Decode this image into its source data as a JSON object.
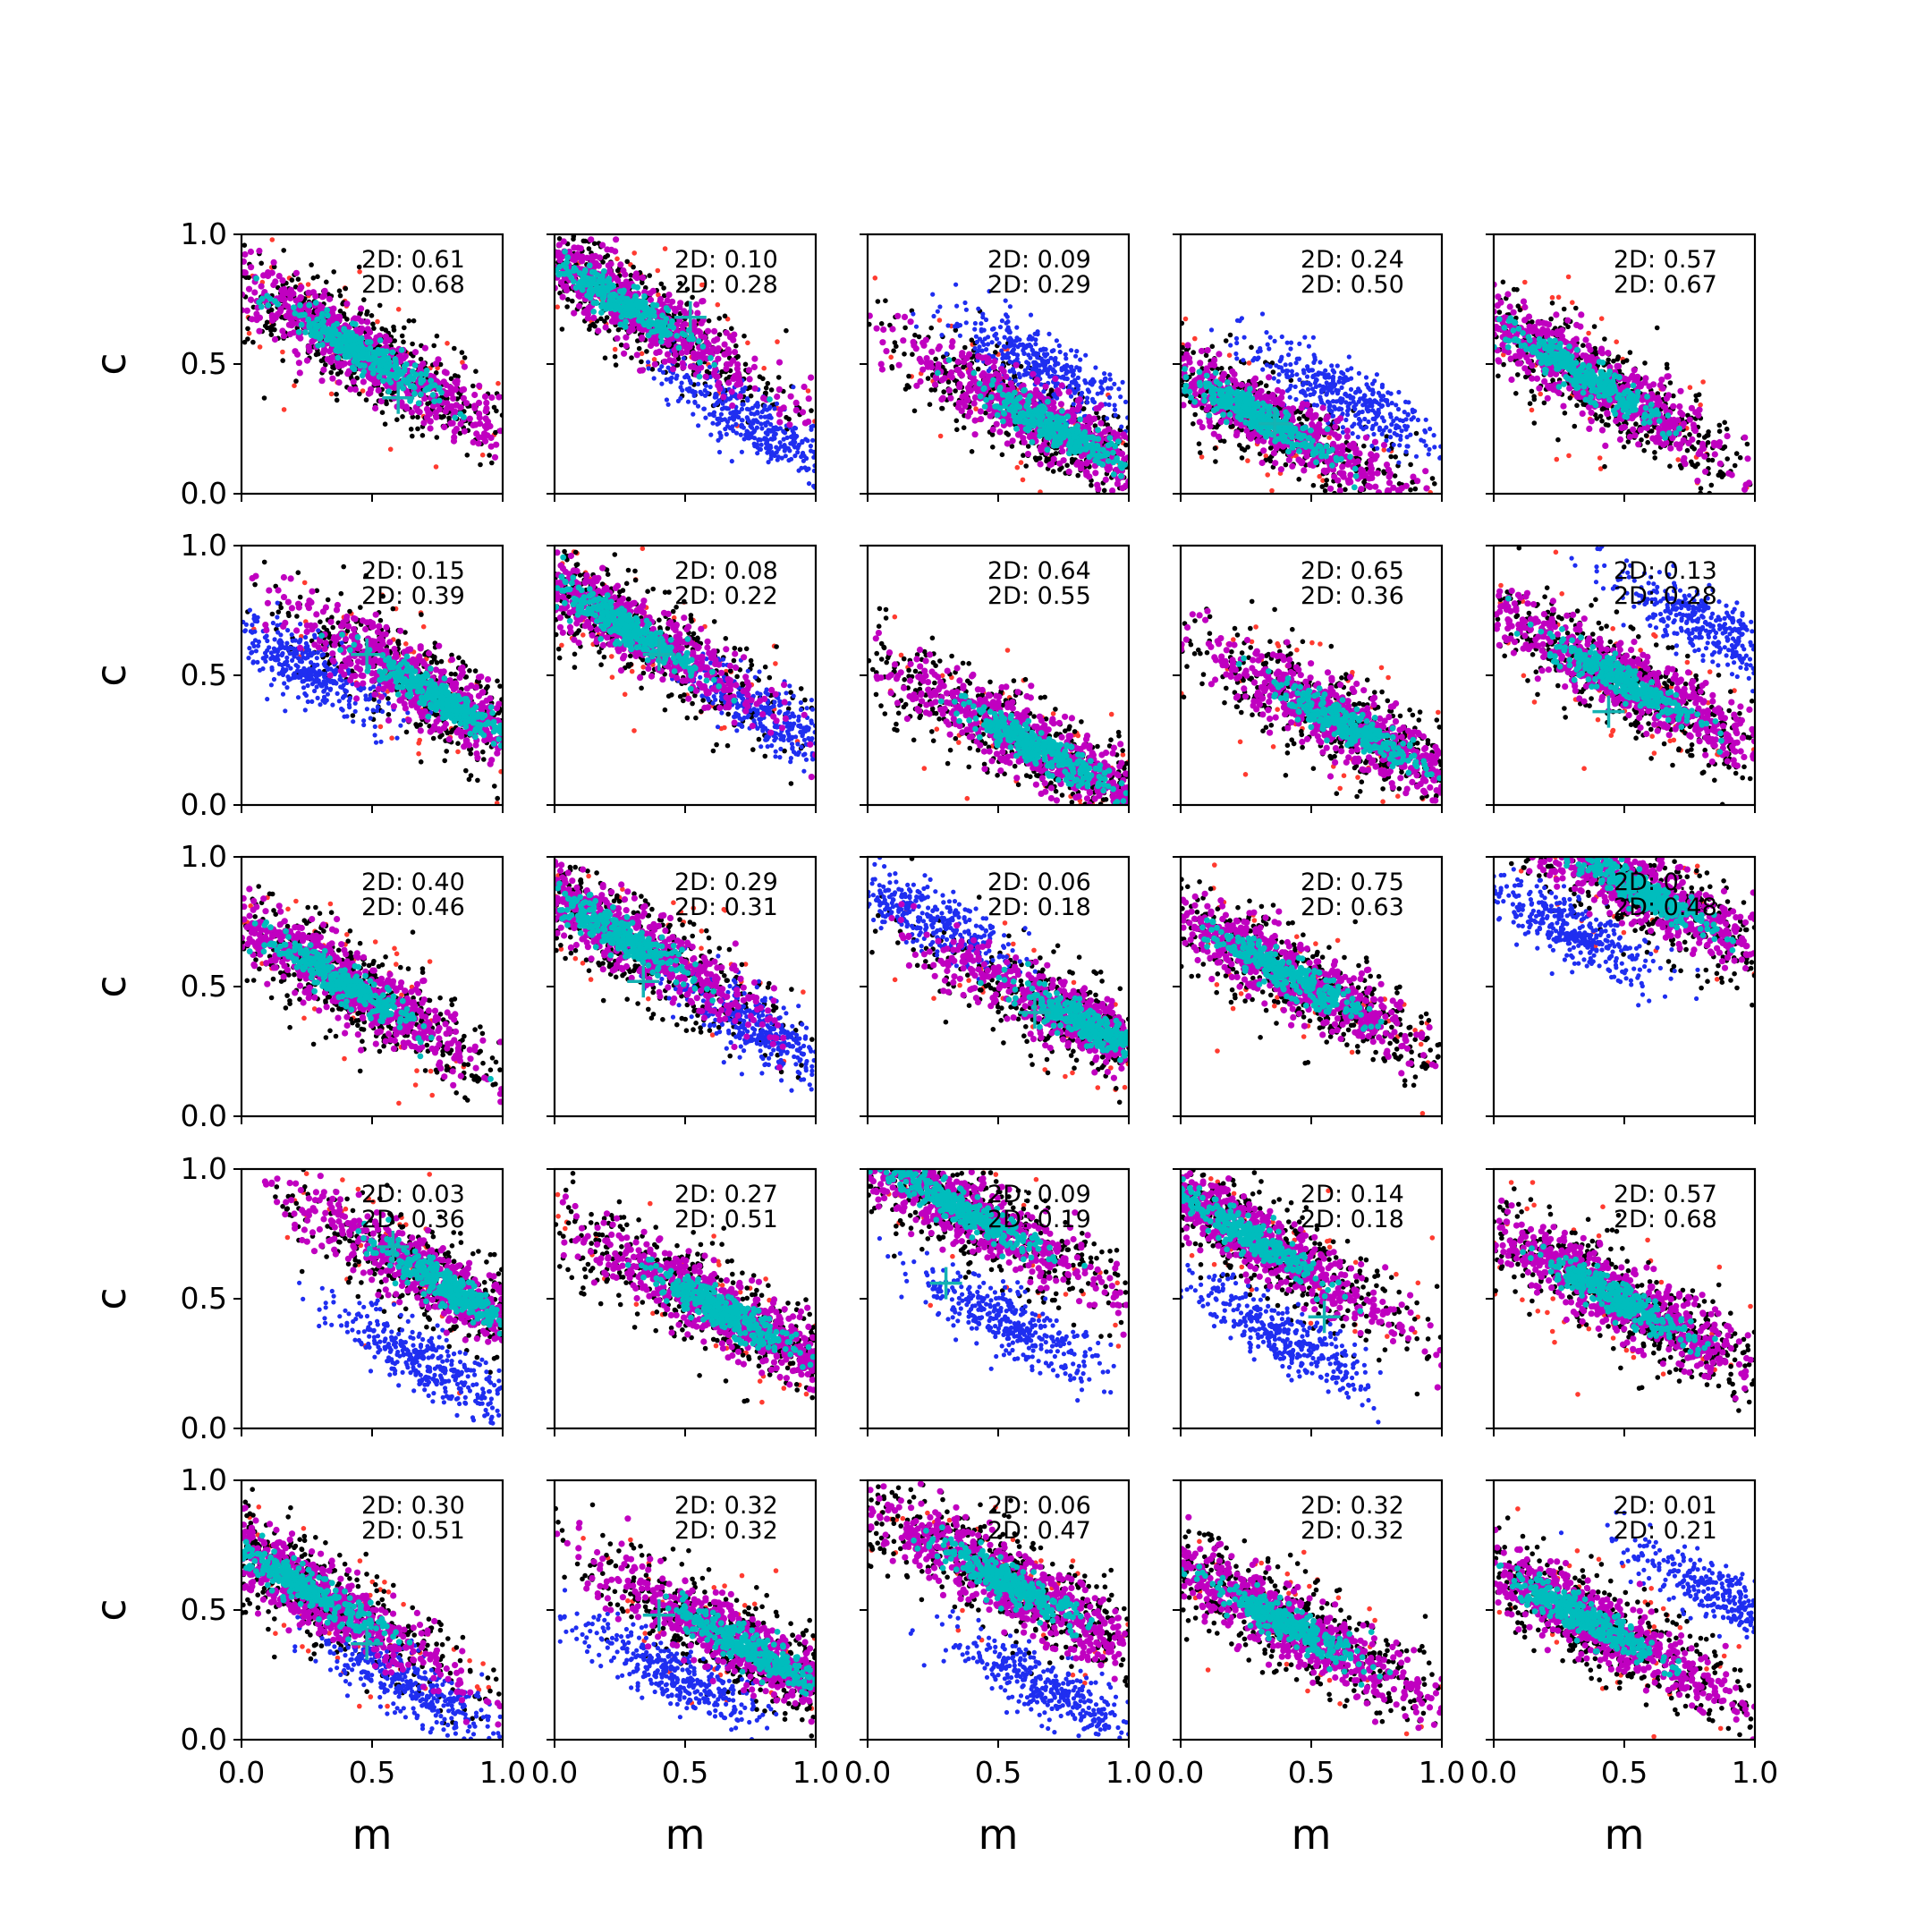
{
  "colors": {
    "red": "#ff3b30",
    "black": "#000000",
    "blue": "#1f2ef0",
    "magenta": "#c000c0",
    "cyan": "#00bdbd",
    "cross": "#14b3b3"
  },
  "chart_data": {
    "type": "scatter",
    "xlabel": "m",
    "ylabel": "c",
    "xlim": [
      0,
      1
    ],
    "ylim": [
      0,
      1
    ],
    "x_ticks": [
      "0.0",
      "0.5",
      "1.0"
    ],
    "y_ticks": [
      "0.0",
      "0.5",
      "1.0"
    ],
    "rows": 5,
    "cols": 5,
    "grid": false,
    "panels": [
      {
        "labels": [
          "2D: 0.61",
          "2D: 0.68"
        ],
        "center": [
          0.45,
          0.55
        ],
        "slope": -0.6,
        "blue": null,
        "cross": [
          0.6,
          0.37
        ]
      },
      {
        "labels": [
          "2D: 0.10",
          "2D: 0.28"
        ],
        "center": [
          0.25,
          0.74
        ],
        "slope": -0.6,
        "blue": [
          0.75,
          0.28
        ],
        "cross": [
          0.52,
          0.68
        ]
      },
      {
        "labels": [
          "2D: 0.09",
          "2D: 0.29"
        ],
        "center": [
          0.72,
          0.25
        ],
        "slope": -0.55,
        "blue": [
          0.65,
          0.5
        ],
        "cross": null
      },
      {
        "labels": [
          "2D: 0.24",
          "2D: 0.50"
        ],
        "center": [
          0.3,
          0.3
        ],
        "slope": -0.55,
        "blue": [
          0.62,
          0.38
        ],
        "cross": [
          0.36,
          0.27
        ]
      },
      {
        "labels": [
          "2D: 0.57",
          "2D: 0.67"
        ],
        "center": [
          0.35,
          0.45
        ],
        "slope": -0.6,
        "blue": null,
        "cross": null
      },
      {
        "labels": [
          "2D: 0.15",
          "2D: 0.39"
        ],
        "center": [
          0.75,
          0.42
        ],
        "slope": -0.6,
        "blue": [
          0.25,
          0.53
        ],
        "cross": [
          0.48,
          0.58
        ]
      },
      {
        "labels": [
          "2D: 0.08",
          "2D: 0.22"
        ],
        "center": [
          0.25,
          0.7
        ],
        "slope": -0.6,
        "blue": [
          0.85,
          0.33
        ],
        "cross": [
          0.4,
          0.58
        ]
      },
      {
        "labels": [
          "2D: 0.64",
          "2D: 0.55"
        ],
        "center": [
          0.65,
          0.22
        ],
        "slope": -0.55,
        "blue": null,
        "cross": null
      },
      {
        "labels": [
          "2D: 0.65",
          "2D: 0.36"
        ],
        "center": [
          0.65,
          0.3
        ],
        "slope": -0.55,
        "blue": null,
        "cross": null
      },
      {
        "labels": [
          "2D: 0.13",
          "2D: 0.28"
        ],
        "center": [
          0.5,
          0.48
        ],
        "slope": -0.55,
        "blue": [
          0.8,
          0.7
        ],
        "cross": [
          0.44,
          0.36
        ]
      },
      {
        "labels": [
          "2D: 0.40",
          "2D: 0.46"
        ],
        "center": [
          0.38,
          0.52
        ],
        "slope": -0.6,
        "blue": null,
        "cross": null
      },
      {
        "labels": [
          "2D: 0.29",
          "2D: 0.31"
        ],
        "center": [
          0.25,
          0.7
        ],
        "slope": -0.6,
        "blue": [
          0.8,
          0.33
        ],
        "cross": [
          0.34,
          0.52
        ]
      },
      {
        "labels": [
          "2D: 0.06",
          "2D: 0.18"
        ],
        "center": [
          0.85,
          0.35
        ],
        "slope": -0.5,
        "blue": [
          0.2,
          0.78
        ],
        "cross": [
          0.64,
          0.4
        ]
      },
      {
        "labels": [
          "2D: 0.75",
          "2D: 0.63"
        ],
        "center": [
          0.4,
          0.55
        ],
        "slope": -0.55,
        "blue": null,
        "cross": null
      },
      {
        "labels": [
          "2D: 0.",
          "2D: 0.48"
        ],
        "center": [
          0.55,
          0.88
        ],
        "slope": -0.55,
        "blue": [
          0.3,
          0.72
        ],
        "cross": null
      },
      {
        "labels": [
          "2D: 0.03",
          "2D: 0.36"
        ],
        "center": [
          0.78,
          0.55
        ],
        "slope": -0.6,
        "blue": [
          0.72,
          0.25
        ],
        "cross": [
          0.58,
          0.7
        ]
      },
      {
        "labels": [
          "2D: 0.27",
          "2D: 0.51"
        ],
        "center": [
          0.65,
          0.45
        ],
        "slope": -0.55,
        "blue": null,
        "cross": null
      },
      {
        "labels": [
          "2D: 0.09",
          "2D: 0.19"
        ],
        "center": [
          0.35,
          0.85
        ],
        "slope": -0.55,
        "blue": [
          0.55,
          0.4
        ],
        "cross": [
          0.3,
          0.56
        ]
      },
      {
        "labels": [
          "2D: 0.14",
          "2D: 0.18"
        ],
        "center": [
          0.25,
          0.75
        ],
        "slope": -0.6,
        "blue": [
          0.4,
          0.35
        ],
        "cross": [
          0.55,
          0.43
        ]
      },
      {
        "labels": [
          "2D: 0.57",
          "2D: 0.68"
        ],
        "center": [
          0.48,
          0.5
        ],
        "slope": -0.55,
        "blue": null,
        "cross": null
      },
      {
        "labels": [
          "2D: 0.30",
          "2D: 0.51"
        ],
        "center": [
          0.25,
          0.58
        ],
        "slope": -0.6,
        "blue": [
          0.62,
          0.22
        ],
        "cross": [
          0.48,
          0.37
        ]
      },
      {
        "labels": [
          "2D: 0.32",
          "2D: 0.32"
        ],
        "center": [
          0.75,
          0.35
        ],
        "slope": -0.55,
        "blue": [
          0.45,
          0.25
        ],
        "cross": [
          0.4,
          0.48
        ]
      },
      {
        "labels": [
          "2D: 0.06",
          "2D: 0.47"
        ],
        "center": [
          0.55,
          0.6
        ],
        "slope": -0.55,
        "blue": [
          0.68,
          0.2
        ],
        "cross": null
      },
      {
        "labels": [
          "2D: 0.32",
          "2D: 0.32"
        ],
        "center": [
          0.4,
          0.45
        ],
        "slope": -0.55,
        "blue": null,
        "cross": null
      },
      {
        "labels": [
          "2D: 0.01",
          "2D: 0.21"
        ],
        "center": [
          0.35,
          0.47
        ],
        "slope": -0.55,
        "blue": [
          0.88,
          0.55
        ],
        "cross": null
      }
    ]
  }
}
